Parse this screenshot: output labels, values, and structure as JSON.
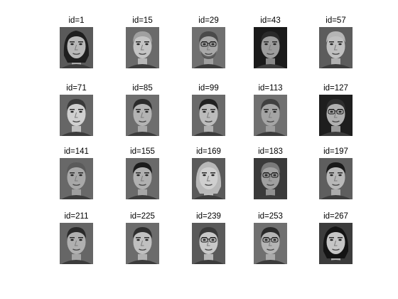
{
  "figure": {
    "subplots": [
      {
        "label": "id=1"
      },
      {
        "label": "id=15"
      },
      {
        "label": "id=29"
      },
      {
        "label": "id=43"
      },
      {
        "label": "id=57"
      },
      {
        "label": "id=71"
      },
      {
        "label": "id=85"
      },
      {
        "label": "id=99"
      },
      {
        "label": "id=113"
      },
      {
        "label": "id=127"
      },
      {
        "label": "id=141"
      },
      {
        "label": "id=155"
      },
      {
        "label": "id=169"
      },
      {
        "label": "id=183"
      },
      {
        "label": "id=197"
      },
      {
        "label": "id=211"
      },
      {
        "label": "id=225"
      },
      {
        "label": "id=239"
      },
      {
        "label": "id=253"
      },
      {
        "label": "id=267"
      }
    ],
    "grid": {
      "rows": 4,
      "columns": 5
    },
    "colormap": "grayscale",
    "background_color": "#ffffff"
  }
}
